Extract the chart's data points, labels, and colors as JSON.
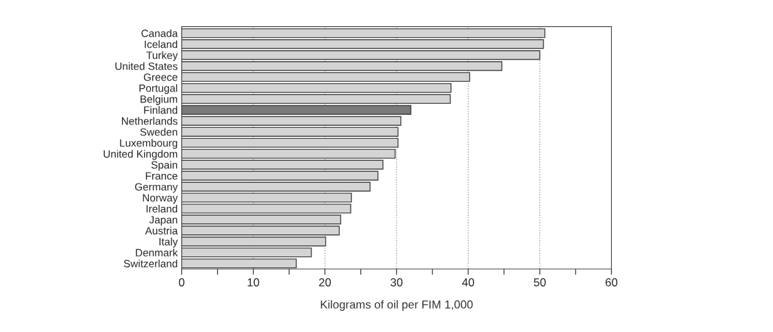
{
  "chart_data": {
    "type": "bar",
    "orientation": "horizontal",
    "xlabel": "Kilograms of oil per FIM 1,000",
    "categories": [
      "Canada",
      "Iceland",
      "Turkey",
      "United States",
      "Greece",
      "Portugal",
      "Belgium",
      "Finland",
      "Netherlands",
      "Sweden",
      "Luxembourg",
      "United Kingdom",
      "Spain",
      "France",
      "Germany",
      "Norway",
      "Ireland",
      "Japan",
      "Austria",
      "Italy",
      "Denmark",
      "Switzerland"
    ],
    "values": [
      50.7,
      50.5,
      50.0,
      44.7,
      40.2,
      37.6,
      37.5,
      32.0,
      30.6,
      30.2,
      30.2,
      29.8,
      28.1,
      27.4,
      26.3,
      23.7,
      23.6,
      22.2,
      22.0,
      20.1,
      18.1,
      16.0
    ],
    "colors": [
      "#d4d4d4",
      "#d4d4d4",
      "#d4d4d4",
      "#d4d4d4",
      "#d4d4d4",
      "#d4d4d4",
      "#d4d4d4",
      "#7a7a7a",
      "#d4d4d4",
      "#d4d4d4",
      "#d4d4d4",
      "#d4d4d4",
      "#d4d4d4",
      "#d4d4d4",
      "#d4d4d4",
      "#d4d4d4",
      "#d4d4d4",
      "#d4d4d4",
      "#d4d4d4",
      "#d4d4d4",
      "#d4d4d4",
      "#d4d4d4"
    ],
    "xlim": [
      0,
      60
    ],
    "xticks": [
      0,
      {
        "value": 5,
        "label": null
      },
      10,
      {
        "value": 15,
        "label": null
      },
      20,
      {
        "value": 25,
        "label": null
      },
      30,
      {
        "value": 35,
        "label": null
      },
      40,
      {
        "value": 45,
        "label": null
      },
      50,
      {
        "value": 55,
        "label": null
      },
      60
    ],
    "grid": "x"
  }
}
